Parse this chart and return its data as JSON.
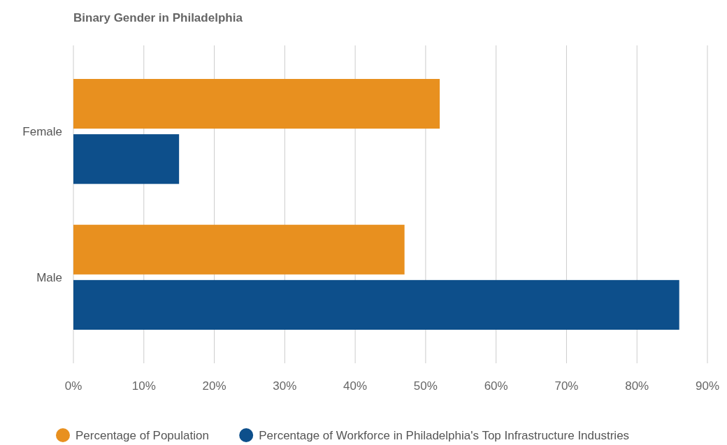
{
  "chart_data": {
    "type": "bar",
    "orientation": "horizontal",
    "title": "Binary Gender in Philadelphia",
    "categories": [
      "Female",
      "Male"
    ],
    "series": [
      {
        "name": "Percentage of Population",
        "color": "#e8901f",
        "values": [
          52,
          47
        ]
      },
      {
        "name": "Percentage of Workforce in Philadelphia's Top Infrastructure Industries",
        "color": "#0d4f8b",
        "values": [
          15,
          86
        ]
      }
    ],
    "xlim": [
      0,
      90
    ],
    "xticks": [
      {
        "value": 0,
        "label": "0%"
      },
      {
        "value": 10,
        "label": "10%"
      },
      {
        "value": 20,
        "label": "20%"
      },
      {
        "value": 30,
        "label": "30%"
      },
      {
        "value": 40,
        "label": "40%"
      },
      {
        "value": 50,
        "label": "50%"
      },
      {
        "value": 60,
        "label": "60%"
      },
      {
        "value": 70,
        "label": "70%"
      },
      {
        "value": 80,
        "label": "80%"
      },
      {
        "value": 90,
        "label": "90%"
      }
    ],
    "grid": "x",
    "legend": "bottom"
  }
}
